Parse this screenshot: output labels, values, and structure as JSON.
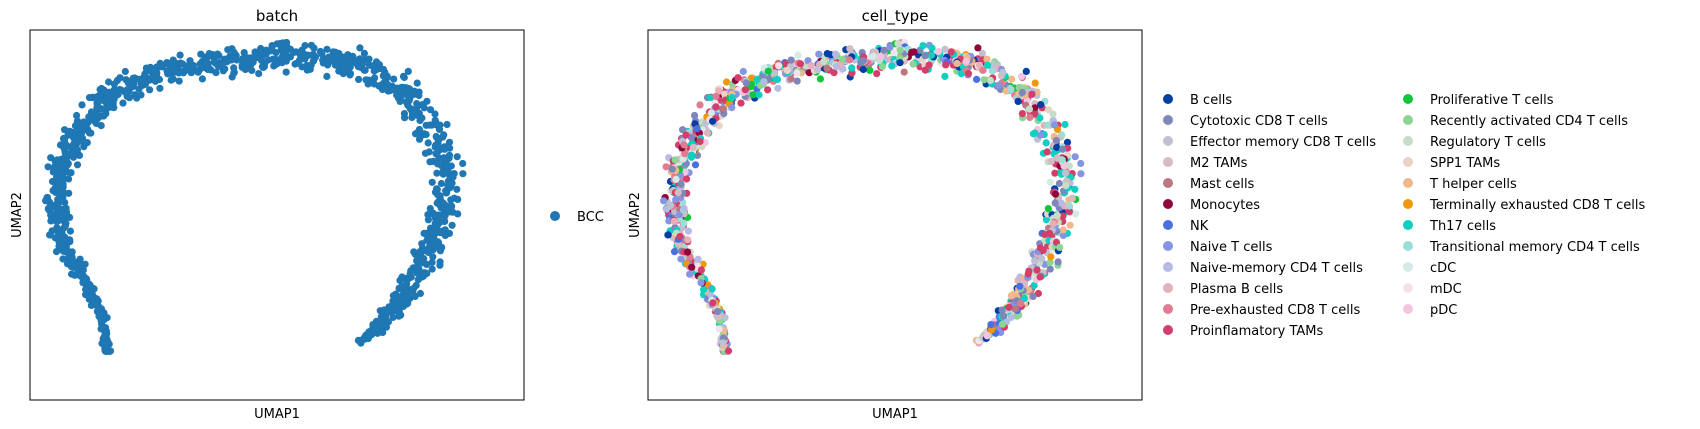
{
  "chart_data": [
    {
      "type": "scatter",
      "title": "batch",
      "xlabel": "UMAP1",
      "ylabel": "UMAP2",
      "xticks": [],
      "yticks": [],
      "grid": false,
      "legend_position": "right",
      "series": [
        {
          "name": "BCC",
          "color": "#1f77b4"
        }
      ]
    },
    {
      "type": "scatter",
      "title": "cell_type",
      "xlabel": "UMAP1",
      "ylabel": "UMAP2",
      "xticks": [],
      "yticks": [],
      "grid": false,
      "legend_position": "right",
      "legend_columns": 2,
      "series": [
        {
          "name": "B cells",
          "color": "#023fa5"
        },
        {
          "name": "Cytotoxic CD8 T cells",
          "color": "#7d87b9"
        },
        {
          "name": "Effector memory CD8 T cells",
          "color": "#bec1d4"
        },
        {
          "name": "M2 TAMs",
          "color": "#d6bcc0"
        },
        {
          "name": "Mast cells",
          "color": "#bb7784"
        },
        {
          "name": "Monocytes",
          "color": "#8e063b"
        },
        {
          "name": "NK",
          "color": "#4a6fe3"
        },
        {
          "name": "Naive T cells",
          "color": "#8595e1"
        },
        {
          "name": "Naive-memory CD4 T cells",
          "color": "#b5bbe3"
        },
        {
          "name": "Plasma B cells",
          "color": "#e6afb9"
        },
        {
          "name": "Pre-exhausted CD8 T cells",
          "color": "#e07b91"
        },
        {
          "name": "Proinflamatory TAMs",
          "color": "#d33f6a"
        },
        {
          "name": "Proliferative T cells",
          "color": "#11c638"
        },
        {
          "name": "Recently activated CD4 T cells",
          "color": "#8dd593"
        },
        {
          "name": "Regulatory T cells",
          "color": "#c6dec7"
        },
        {
          "name": "SPP1 TAMs",
          "color": "#ead3c6"
        },
        {
          "name": "T helper cells",
          "color": "#f0b98d"
        },
        {
          "name": "Terminally exhausted CD8 T cells",
          "color": "#ef9708"
        },
        {
          "name": "Th17 cells",
          "color": "#0fcfc0"
        },
        {
          "name": "Transitional memory CD4 T cells",
          "color": "#9cded6"
        },
        {
          "name": "cDC",
          "color": "#d5eae7"
        },
        {
          "name": "mDC",
          "color": "#f3e1eb"
        },
        {
          "name": "pDC",
          "color": "#f6c4e1"
        }
      ]
    }
  ]
}
